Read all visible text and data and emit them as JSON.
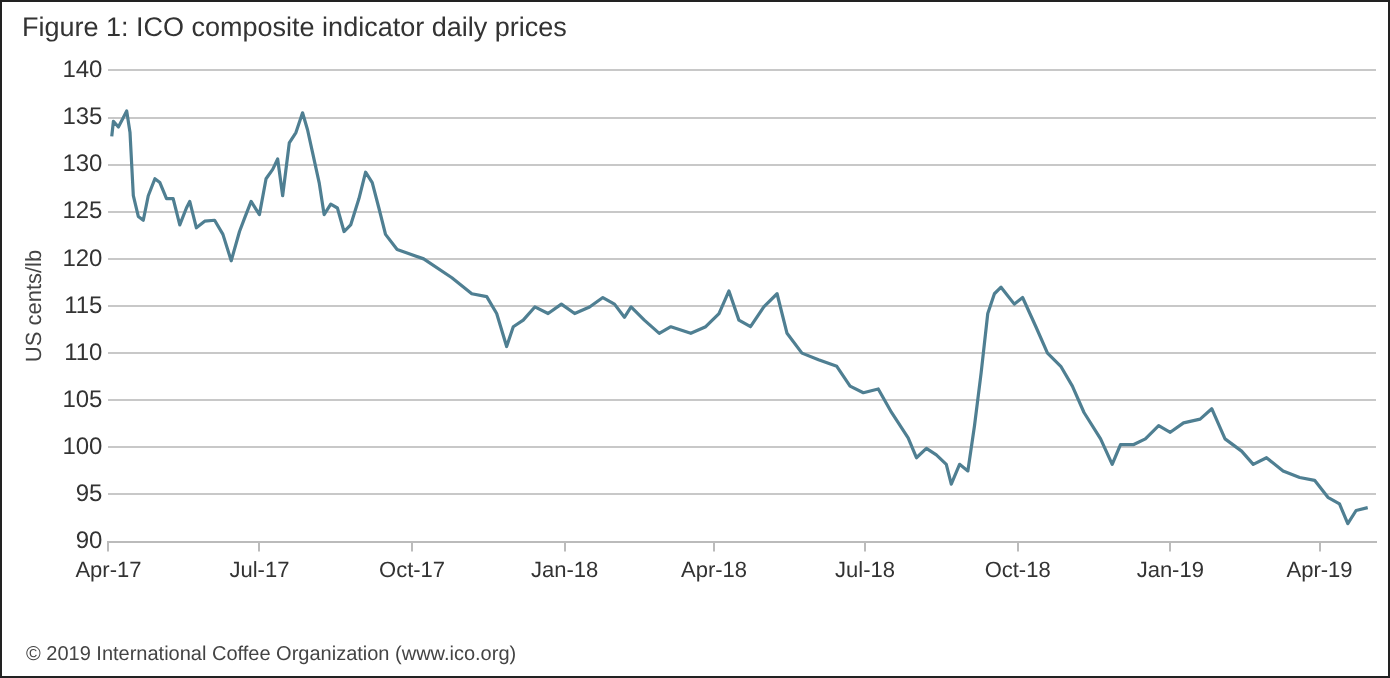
{
  "chart_data": {
    "type": "line",
    "title": "Figure 1: ICO composite indicator daily prices",
    "ylabel": "US cents/lb",
    "annotations": [
      "© 2019 International Coffee Organization (www.ico.org)"
    ],
    "x": [
      "2017-04-03",
      "2017-04-04",
      "2017-04-07",
      "2017-04-10",
      "2017-04-12",
      "2017-04-14",
      "2017-04-16",
      "2017-04-19",
      "2017-04-22",
      "2017-04-25",
      "2017-04-29",
      "2017-05-02",
      "2017-05-06",
      "2017-05-10",
      "2017-05-14",
      "2017-05-18",
      "2017-05-20",
      "2017-05-24",
      "2017-05-29",
      "2017-06-04",
      "2017-06-09",
      "2017-06-14",
      "2017-06-19",
      "2017-06-22",
      "2017-06-26",
      "2017-07-01",
      "2017-07-05",
      "2017-07-09",
      "2017-07-12",
      "2017-07-15",
      "2017-07-19",
      "2017-07-23",
      "2017-07-27",
      "2017-07-30",
      "2017-08-02",
      "2017-08-06",
      "2017-08-09",
      "2017-08-13",
      "2017-08-17",
      "2017-08-21",
      "2017-08-25",
      "2017-08-30",
      "2017-09-03",
      "2017-09-07",
      "2017-09-11",
      "2017-09-15",
      "2017-09-22",
      "2017-10-08",
      "2017-10-25",
      "2017-11-06",
      "2017-11-15",
      "2017-11-21",
      "2017-11-27",
      "2017-12-01",
      "2017-12-07",
      "2017-12-14",
      "2017-12-22",
      "2017-12-30",
      "2018-01-07",
      "2018-01-16",
      "2018-01-24",
      "2018-01-31",
      "2018-02-06",
      "2018-02-10",
      "2018-02-18",
      "2018-02-27",
      "2018-03-06",
      "2018-03-18",
      "2018-03-27",
      "2018-04-04",
      "2018-04-10",
      "2018-04-16",
      "2018-04-23",
      "2018-05-01",
      "2018-05-09",
      "2018-05-15",
      "2018-05-24",
      "2018-06-03",
      "2018-06-14",
      "2018-06-22",
      "2018-06-30",
      "2018-07-09",
      "2018-07-17",
      "2018-07-27",
      "2018-08-01",
      "2018-08-07",
      "2018-08-13",
      "2018-08-19",
      "2018-08-22",
      "2018-08-27",
      "2018-09-01",
      "2018-09-05",
      "2018-09-09",
      "2018-09-13",
      "2018-09-17",
      "2018-09-21",
      "2018-09-29",
      "2018-10-04",
      "2018-10-12",
      "2018-10-19",
      "2018-10-27",
      "2018-11-03",
      "2018-11-10",
      "2018-11-20",
      "2018-11-27",
      "2018-12-02",
      "2018-12-10",
      "2018-12-17",
      "2018-12-25",
      "2019-01-01",
      "2019-01-09",
      "2019-01-19",
      "2019-01-26",
      "2019-02-03",
      "2019-02-13",
      "2019-02-20",
      "2019-02-28",
      "2019-03-10",
      "2019-03-20",
      "2019-03-29",
      "2019-04-06",
      "2019-04-13",
      "2019-04-18",
      "2019-04-23",
      "2019-04-30"
    ],
    "series": [
      {
        "color": "#4f7f92",
        "values": [
          133.0,
          134.6,
          134.0,
          135.0,
          135.7,
          133.4,
          126.7,
          124.5,
          124.1,
          126.7,
          128.5,
          128.1,
          126.4,
          126.4,
          123.6,
          125.4,
          126.1,
          123.3,
          124.0,
          124.1,
          122.6,
          119.8,
          122.9,
          124.3,
          126.1,
          124.7,
          128.5,
          129.5,
          130.6,
          126.7,
          132.3,
          133.4,
          135.5,
          133.7,
          131.3,
          128.1,
          124.7,
          125.8,
          125.4,
          122.9,
          123.6,
          126.4,
          129.2,
          128.1,
          125.4,
          122.6,
          121.0,
          120.0,
          118.0,
          116.3,
          116.0,
          114.2,
          110.7,
          112.8,
          113.5,
          114.9,
          114.2,
          115.2,
          114.2,
          114.9,
          115.9,
          115.2,
          113.8,
          114.9,
          113.5,
          112.1,
          112.8,
          112.1,
          112.8,
          114.2,
          116.6,
          113.5,
          112.8,
          114.9,
          116.3,
          112.1,
          110.0,
          109.3,
          108.6,
          106.5,
          105.8,
          106.2,
          103.7,
          101.0,
          98.9,
          99.9,
          99.2,
          98.2,
          96.1,
          98.2,
          97.5,
          102.3,
          107.9,
          114.2,
          116.3,
          117.0,
          115.2,
          115.9,
          112.8,
          110.0,
          108.6,
          106.5,
          103.7,
          100.9,
          98.2,
          100.3,
          100.3,
          100.9,
          102.3,
          101.6,
          102.6,
          103.0,
          104.1,
          100.9,
          99.6,
          98.2,
          98.9,
          97.5,
          96.8,
          96.5,
          94.7,
          94.0,
          91.9,
          93.3,
          93.6
        ]
      }
    ],
    "xlim": [
      "2017-04-01",
      "2019-05-05"
    ],
    "xticks": [
      {
        "value": "2017-04-01",
        "label": "Apr-17"
      },
      {
        "value": "2017-07-01",
        "label": "Jul-17"
      },
      {
        "value": "2017-10-01",
        "label": "Oct-17"
      },
      {
        "value": "2018-01-01",
        "label": "Jan-18"
      },
      {
        "value": "2018-04-01",
        "label": "Apr-18"
      },
      {
        "value": "2018-07-01",
        "label": "Jul-18"
      },
      {
        "value": "2018-10-01",
        "label": "Oct-18"
      },
      {
        "value": "2019-01-01",
        "label": "Jan-19"
      },
      {
        "value": "2019-04-01",
        "label": "Apr-19"
      }
    ],
    "ylim": [
      90,
      140
    ],
    "yticks": [
      90,
      95,
      100,
      105,
      110,
      115,
      120,
      125,
      130,
      135,
      140
    ],
    "grid": "y",
    "legend": false,
    "marker": "none",
    "line_style": "solid"
  }
}
